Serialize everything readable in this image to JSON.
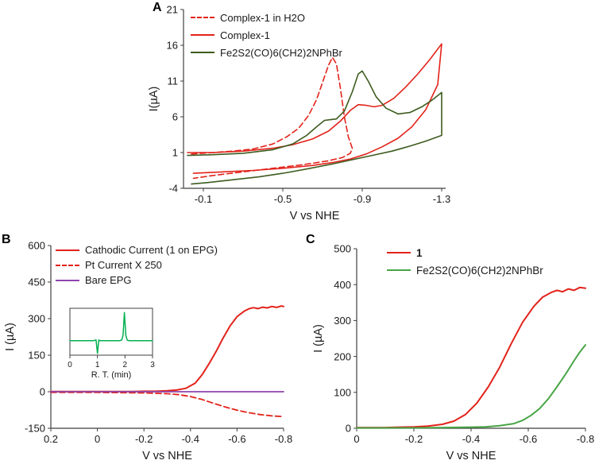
{
  "figure": {
    "panels": [
      {
        "label": "A"
      },
      {
        "label": "B"
      },
      {
        "label": "C"
      }
    ]
  },
  "chart_data": [
    {
      "id": "panel-A",
      "type": "line",
      "title": "",
      "xlabel": "V vs NHE",
      "ylabel": "I(µA)",
      "xlim": [
        0,
        -1.32
      ],
      "ylim": [
        -4,
        21
      ],
      "grid": false,
      "legend_position": "top-left-inside",
      "xticks": [
        {
          "v": -0.1,
          "label": "-0.1"
        },
        {
          "v": -0.5,
          "label": "-0.5"
        },
        {
          "v": -0.9,
          "label": "-0.9"
        },
        {
          "v": -1.3,
          "label": "-1.3"
        }
      ],
      "yticks": [
        {
          "v": -4,
          "label": "-4"
        },
        {
          "v": 1,
          "label": "1"
        },
        {
          "v": 6,
          "label": "6"
        },
        {
          "v": 11,
          "label": "11"
        },
        {
          "v": 16,
          "label": "16"
        },
        {
          "v": 21,
          "label": "21"
        }
      ],
      "tick_font": 13,
      "label_font": 14.5,
      "xlabel_dy": 39,
      "ylabel_dx": 33,
      "series": [
        {
          "name": "Complex-1 in H2O",
          "color": "#e2231a",
          "dash": "7,4",
          "width": 1.6,
          "points": [
            [
              -0.04,
              0.8
            ],
            [
              -0.15,
              1.0
            ],
            [
              -0.25,
              1.2
            ],
            [
              -0.35,
              1.5
            ],
            [
              -0.45,
              2.2
            ],
            [
              -0.52,
              3.2
            ],
            [
              -0.58,
              4.4
            ],
            [
              -0.63,
              6.2
            ],
            [
              -0.67,
              8.4
            ],
            [
              -0.7,
              10.8
            ],
            [
              -0.73,
              13.2
            ],
            [
              -0.75,
              14.3
            ],
            [
              -0.77,
              13.4
            ],
            [
              -0.79,
              10.0
            ],
            [
              -0.81,
              6.0
            ],
            [
              -0.83,
              3.2
            ],
            [
              -0.85,
              1.6
            ],
            [
              -0.84,
              0.9
            ],
            [
              -0.8,
              0.3
            ],
            [
              -0.72,
              -0.2
            ],
            [
              -0.6,
              -0.7
            ],
            [
              -0.45,
              -1.2
            ],
            [
              -0.3,
              -1.7
            ],
            [
              -0.15,
              -2.2
            ],
            [
              -0.05,
              -2.6
            ]
          ]
        },
        {
          "name": "Complex-1",
          "color": "#e2231a",
          "dash": null,
          "width": 1.6,
          "points": [
            [
              -0.02,
              1.0
            ],
            [
              -0.15,
              1.0
            ],
            [
              -0.3,
              1.2
            ],
            [
              -0.45,
              1.6
            ],
            [
              -0.55,
              2.1
            ],
            [
              -0.65,
              2.9
            ],
            [
              -0.73,
              4.0
            ],
            [
              -0.79,
              5.4
            ],
            [
              -0.84,
              6.9
            ],
            [
              -0.88,
              7.7
            ],
            [
              -0.92,
              7.6
            ],
            [
              -0.96,
              7.4
            ],
            [
              -1.0,
              7.6
            ],
            [
              -1.06,
              8.6
            ],
            [
              -1.12,
              10.2
            ],
            [
              -1.18,
              12.0
            ],
            [
              -1.24,
              14.0
            ],
            [
              -1.3,
              16.2
            ],
            [
              -1.28,
              10.5
            ],
            [
              -1.22,
              7.0
            ],
            [
              -1.15,
              4.6
            ],
            [
              -1.08,
              3.0
            ],
            [
              -1.0,
              1.8
            ],
            [
              -0.92,
              0.8
            ],
            [
              -0.84,
              0.1
            ],
            [
              -0.75,
              -0.4
            ],
            [
              -0.65,
              -0.8
            ],
            [
              -0.5,
              -1.2
            ],
            [
              -0.35,
              -1.5
            ],
            [
              -0.2,
              -1.7
            ],
            [
              -0.05,
              -1.9
            ]
          ]
        },
        {
          "name": "Fe2S2(CO)6(CH2)2NPhBr",
          "color": "#3d5c1f",
          "dash": null,
          "width": 1.6,
          "points": [
            [
              -0.02,
              0.6
            ],
            [
              -0.15,
              0.7
            ],
            [
              -0.3,
              0.9
            ],
            [
              -0.45,
              1.4
            ],
            [
              -0.55,
              2.2
            ],
            [
              -0.62,
              3.4
            ],
            [
              -0.67,
              4.6
            ],
            [
              -0.71,
              5.5
            ],
            [
              -0.74,
              5.6
            ],
            [
              -0.77,
              5.7
            ],
            [
              -0.81,
              6.8
            ],
            [
              -0.85,
              9.5
            ],
            [
              -0.88,
              12.0
            ],
            [
              -0.9,
              12.4
            ],
            [
              -0.93,
              11.0
            ],
            [
              -0.97,
              8.8
            ],
            [
              -1.02,
              7.2
            ],
            [
              -1.08,
              6.4
            ],
            [
              -1.14,
              6.6
            ],
            [
              -1.2,
              7.4
            ],
            [
              -1.25,
              8.3
            ],
            [
              -1.3,
              9.4
            ],
            [
              -1.3,
              3.4
            ],
            [
              -1.22,
              2.6
            ],
            [
              -1.14,
              1.9
            ],
            [
              -1.05,
              1.2
            ],
            [
              -0.95,
              0.6
            ],
            [
              -0.85,
              0.0
            ],
            [
              -0.75,
              -0.6
            ],
            [
              -0.62,
              -1.3
            ],
            [
              -0.5,
              -1.9
            ],
            [
              -0.38,
              -2.4
            ],
            [
              -0.25,
              -2.8
            ],
            [
              -0.12,
              -3.2
            ],
            [
              -0.04,
              -3.4
            ]
          ]
        }
      ]
    },
    {
      "id": "panel-B",
      "type": "line",
      "title": "",
      "xlabel": "V vs NHE",
      "ylabel": "I (µA)",
      "xlim": [
        0.2,
        -0.8
      ],
      "ylim": [
        -150,
        600
      ],
      "grid": false,
      "legend_position": "top-left-inside",
      "xticks": [
        {
          "v": 0.2,
          "label": "0.2"
        },
        {
          "v": 0,
          "label": "0"
        },
        {
          "v": -0.2,
          "label": "-0.2"
        },
        {
          "v": -0.4,
          "label": "-0.4"
        },
        {
          "v": -0.6,
          "label": "-0.6"
        },
        {
          "v": -0.8,
          "label": "-0.8"
        }
      ],
      "yticks": [
        {
          "v": -150,
          "label": "-150"
        },
        {
          "v": 0,
          "label": "0"
        },
        {
          "v": 150,
          "label": "150"
        },
        {
          "v": 300,
          "label": "300"
        },
        {
          "v": 450,
          "label": "450"
        },
        {
          "v": 600,
          "label": "600"
        }
      ],
      "tick_font": 13,
      "label_font": 14.5,
      "xlabel_dy": 39,
      "ylabel_dx": 47,
      "series": [
        {
          "name": "Cathodic Current (1 on EPG)",
          "color": "#e2231a",
          "dash": null,
          "width": 2,
          "points": [
            [
              0.2,
              1
            ],
            [
              0.1,
              1
            ],
            [
              0.05,
              1
            ],
            [
              0,
              1
            ],
            [
              -0.05,
              1
            ],
            [
              -0.1,
              1
            ],
            [
              -0.15,
              1
            ],
            [
              -0.2,
              2
            ],
            [
              -0.25,
              2
            ],
            [
              -0.3,
              4
            ],
            [
              -0.34,
              7
            ],
            [
              -0.38,
              14
            ],
            [
              -0.42,
              35
            ],
            [
              -0.45,
              70
            ],
            [
              -0.48,
              115
            ],
            [
              -0.51,
              165
            ],
            [
              -0.54,
              220
            ],
            [
              -0.57,
              270
            ],
            [
              -0.6,
              308
            ],
            [
              -0.63,
              330
            ],
            [
              -0.65,
              340
            ],
            [
              -0.67,
              345
            ],
            [
              -0.69,
              341
            ],
            [
              -0.71,
              347
            ],
            [
              -0.73,
              344
            ],
            [
              -0.75,
              350
            ],
            [
              -0.77,
              346
            ],
            [
              -0.79,
              352
            ],
            [
              -0.8,
              350
            ]
          ]
        },
        {
          "name": "Pt Current X 250",
          "color": "#e2231a",
          "dash": "7,4",
          "width": 1.8,
          "points": [
            [
              0.2,
              -3
            ],
            [
              0.1,
              -3
            ],
            [
              0,
              -3
            ],
            [
              -0.1,
              -4
            ],
            [
              -0.2,
              -5
            ],
            [
              -0.3,
              -8
            ],
            [
              -0.35,
              -12
            ],
            [
              -0.4,
              -20
            ],
            [
              -0.45,
              -32
            ],
            [
              -0.5,
              -48
            ],
            [
              -0.55,
              -63
            ],
            [
              -0.6,
              -76
            ],
            [
              -0.65,
              -86
            ],
            [
              -0.7,
              -94
            ],
            [
              -0.75,
              -99
            ],
            [
              -0.8,
              -102
            ]
          ]
        },
        {
          "name": "Bare EPG",
          "color": "#8e44ad",
          "dash": null,
          "width": 1.8,
          "points": [
            [
              0.2,
              0
            ],
            [
              -0.8,
              0
            ]
          ]
        }
      ]
    },
    {
      "id": "panel-B-inset",
      "type": "line",
      "frame": true,
      "title": "",
      "xlabel": "R. T. (min)",
      "ylabel": "",
      "xlim": [
        0,
        3
      ],
      "ylim": [
        0,
        1.3
      ],
      "grid": false,
      "xticks": [
        {
          "v": 0,
          "label": "0"
        },
        {
          "v": 1,
          "label": "1"
        },
        {
          "v": 2,
          "label": "2"
        },
        {
          "v": 3,
          "label": "3"
        }
      ],
      "yticks": [],
      "tick_font": 10,
      "label_font": 11,
      "xlabel_dy": 28,
      "series": [
        {
          "name": "GC trace",
          "color": "#00b050",
          "dash": null,
          "width": 1.5,
          "points": [
            [
              0,
              0.4
            ],
            [
              0.85,
              0.4
            ],
            [
              0.95,
              0.42
            ],
            [
              1.0,
              0.05
            ],
            [
              1.05,
              0.42
            ],
            [
              1.1,
              0.4
            ],
            [
              1.8,
              0.4
            ],
            [
              1.88,
              0.42
            ],
            [
              1.93,
              0.55
            ],
            [
              1.98,
              1.18
            ],
            [
              2.03,
              0.55
            ],
            [
              2.08,
              0.42
            ],
            [
              2.15,
              0.4
            ],
            [
              3,
              0.4
            ]
          ]
        }
      ]
    },
    {
      "id": "panel-C",
      "type": "line",
      "title": "",
      "xlabel": "V vs NHE",
      "ylabel": "I (µA)",
      "xlim": [
        0,
        -0.8
      ],
      "ylim": [
        0,
        500
      ],
      "grid": false,
      "legend_position": "top-left-inside",
      "xticks": [
        {
          "v": 0,
          "label": "0"
        },
        {
          "v": -0.2,
          "label": "-0.2"
        },
        {
          "v": -0.4,
          "label": "-0.4"
        },
        {
          "v": -0.6,
          "label": "-0.6"
        },
        {
          "v": -0.8,
          "label": "-0.8"
        }
      ],
      "yticks": [
        {
          "v": 0,
          "label": "0"
        },
        {
          "v": 100,
          "label": "100"
        },
        {
          "v": 200,
          "label": "200"
        },
        {
          "v": 300,
          "label": "300"
        },
        {
          "v": 400,
          "label": "400"
        },
        {
          "v": 500,
          "label": "500"
        }
      ],
      "tick_font": 13,
      "label_font": 14.5,
      "xlabel_dy": 39,
      "ylabel_dx": 44,
      "series": [
        {
          "name": "1",
          "color": "#e2231a",
          "dash": null,
          "width": 2,
          "points": [
            [
              0,
              2
            ],
            [
              -0.1,
              2
            ],
            [
              -0.15,
              3
            ],
            [
              -0.2,
              4
            ],
            [
              -0.25,
              6
            ],
            [
              -0.3,
              11
            ],
            [
              -0.34,
              20
            ],
            [
              -0.38,
              38
            ],
            [
              -0.42,
              70
            ],
            [
              -0.46,
              115
            ],
            [
              -0.5,
              170
            ],
            [
              -0.54,
              235
            ],
            [
              -0.58,
              295
            ],
            [
              -0.62,
              340
            ],
            [
              -0.65,
              365
            ],
            [
              -0.68,
              378
            ],
            [
              -0.7,
              384
            ],
            [
              -0.72,
              380
            ],
            [
              -0.74,
              388
            ],
            [
              -0.76,
              384
            ],
            [
              -0.78,
              392
            ],
            [
              -0.8,
              390
            ]
          ]
        },
        {
          "name": "Fe2S2(CO)6(CH2)2NPhBr",
          "color": "#48a546",
          "dash": null,
          "width": 2,
          "points": [
            [
              0,
              1
            ],
            [
              -0.1,
              1
            ],
            [
              -0.2,
              1
            ],
            [
              -0.3,
              2
            ],
            [
              -0.4,
              3
            ],
            [
              -0.45,
              4
            ],
            [
              -0.5,
              7
            ],
            [
              -0.55,
              13
            ],
            [
              -0.58,
              22
            ],
            [
              -0.61,
              36
            ],
            [
              -0.64,
              55
            ],
            [
              -0.67,
              82
            ],
            [
              -0.7,
              115
            ],
            [
              -0.73,
              150
            ],
            [
              -0.76,
              188
            ],
            [
              -0.78,
              212
            ],
            [
              -0.8,
              232
            ]
          ]
        }
      ]
    }
  ]
}
